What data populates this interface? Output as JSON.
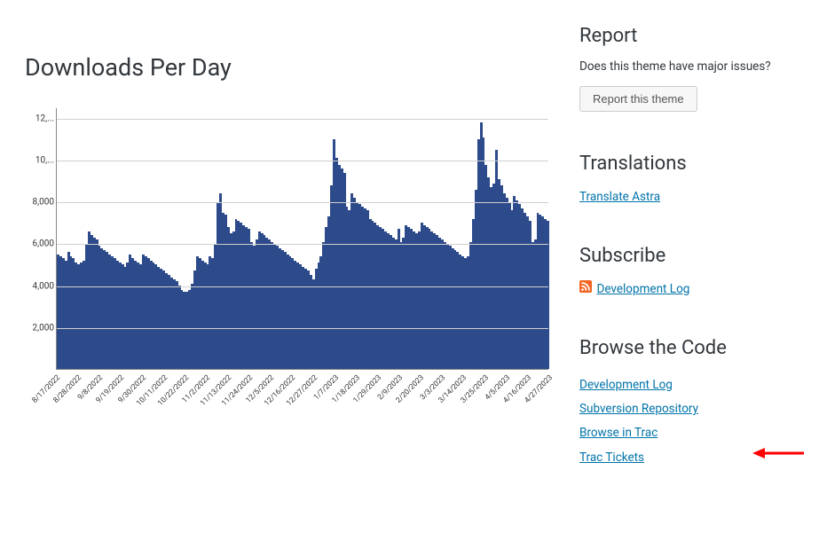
{
  "main": {
    "title": "Downloads Per Day"
  },
  "chart": {
    "type": "bar",
    "bar_color": "#2d4a8a",
    "grid_color": "#d0d0d0",
    "axis_color": "#888888",
    "background_color": "#ffffff",
    "ylim": [
      0,
      12500
    ],
    "yticks": [
      2000,
      4000,
      6000,
      8000,
      10000,
      12000
    ],
    "ytick_labels": [
      "2,000",
      "4,000",
      "6,000",
      "8,000",
      "10,...",
      "12,..."
    ],
    "x_labels": [
      "8/17/2022",
      "8/28/2022",
      "9/8/2022",
      "9/19/2022",
      "9/30/2022",
      "10/11/2022",
      "10/22/2022",
      "11/2/2022",
      "11/13/2022",
      "11/24/2022",
      "12/5/2022",
      "12/16/2022",
      "12/27/2022",
      "1/7/2023",
      "1/18/2023",
      "1/29/2023",
      "2/9/2023",
      "2/20/2023",
      "3/3/2023",
      "3/14/2023",
      "3/25/2023",
      "4/5/2023",
      "4/16/2023",
      "4/27/2023"
    ],
    "values": [
      5500,
      5400,
      5300,
      5200,
      5600,
      5400,
      5300,
      5100,
      5000,
      5100,
      5200,
      6000,
      6600,
      6400,
      6300,
      6200,
      5900,
      5800,
      5700,
      5600,
      5500,
      5400,
      5300,
      5200,
      5100,
      5000,
      4900,
      5100,
      5500,
      5300,
      5200,
      5100,
      5000,
      5500,
      5400,
      5300,
      5200,
      5100,
      5000,
      4900,
      4800,
      4700,
      4600,
      4500,
      4400,
      4300,
      4200,
      4000,
      3800,
      3700,
      3700,
      3800,
      4100,
      4700,
      5400,
      5300,
      5200,
      5100,
      5000,
      5400,
      5300,
      6000,
      8000,
      8400,
      7500,
      7400,
      6800,
      6500,
      6600,
      7200,
      7100,
      7000,
      6900,
      6800,
      6700,
      6100,
      5900,
      6200,
      6600,
      6500,
      6400,
      6300,
      6200,
      6100,
      6000,
      5900,
      5800,
      5700,
      5600,
      5500,
      5400,
      5300,
      5200,
      5100,
      5000,
      4900,
      4800,
      4700,
      4500,
      4300,
      4800,
      5100,
      5400,
      6100,
      6800,
      7300,
      8800,
      11000,
      10100,
      9800,
      9600,
      9400,
      7800,
      7600,
      8400,
      8200,
      8000,
      7900,
      7800,
      7700,
      7600,
      7200,
      7100,
      7000,
      6900,
      6800,
      6700,
      6600,
      6500,
      6400,
      6300,
      6200,
      6700,
      6100,
      6300,
      6900,
      6800,
      6700,
      6600,
      6500,
      6600,
      7000,
      6900,
      6800,
      6700,
      6600,
      6500,
      6400,
      6300,
      6200,
      6100,
      6000,
      5900,
      5800,
      5700,
      5600,
      5500,
      5400,
      5300,
      5400,
      6100,
      7200,
      8600,
      11000,
      11800,
      11100,
      9800,
      9200,
      8700,
      8900,
      10500,
      9100,
      8800,
      8400,
      8200,
      8000,
      7600,
      8300,
      8100,
      7900,
      7700,
      7500,
      7300,
      7100,
      6100,
      6200,
      7500,
      7400,
      7300,
      7200,
      7100
    ]
  },
  "sidebar": {
    "report": {
      "heading": "Report",
      "text": "Does this theme have major issues?",
      "button_label": "Report this theme"
    },
    "translations": {
      "heading": "Translations",
      "link_label": "Translate Astra"
    },
    "subscribe": {
      "heading": "Subscribe",
      "link_label": "Development Log"
    },
    "browse": {
      "heading": "Browse the Code",
      "links": [
        "Development Log",
        "Subversion Repository",
        "Browse in Trac",
        "Trac Tickets"
      ]
    }
  },
  "arrow": {
    "color": "#ff0000"
  }
}
